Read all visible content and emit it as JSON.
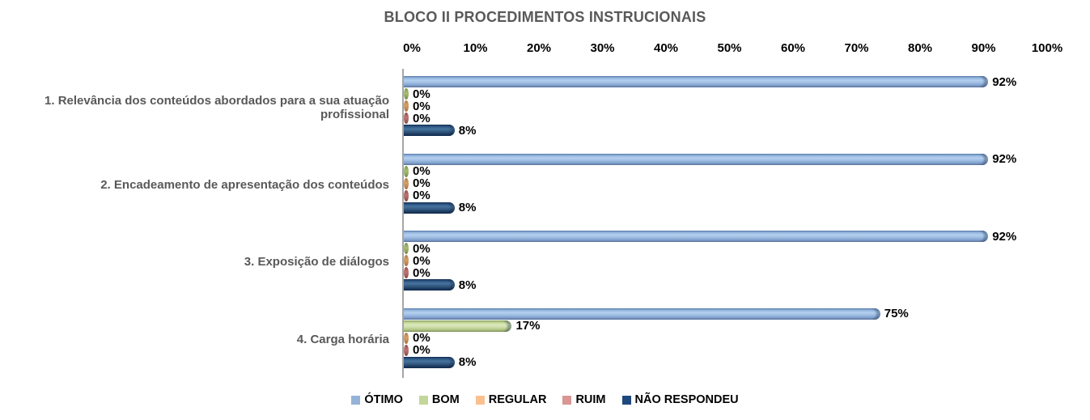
{
  "title": "BLOCO II PROCEDIMENTOS INSTRUCIONAIS",
  "chart_data": {
    "type": "bar",
    "orientation": "horizontal",
    "title": "BLOCO II PROCEDIMENTOS INSTRUCIONAIS",
    "categories": [
      "1. Relevância dos conteúdos abordados para a sua atuação profissional",
      "2. Encadeamento de apresentação dos conteúdos",
      "3. Exposição de diálogos",
      "4. Carga horária"
    ],
    "series": [
      {
        "name": "ÓTIMO",
        "color": "#95B3D7",
        "values": [
          92,
          92,
          92,
          75
        ]
      },
      {
        "name": "BOM",
        "color": "#C3D69B",
        "values": [
          0,
          0,
          0,
          17
        ]
      },
      {
        "name": "REGULAR",
        "color": "#FAC090",
        "values": [
          0,
          0,
          0,
          0
        ]
      },
      {
        "name": "RUIM",
        "color": "#D99694",
        "values": [
          0,
          0,
          0,
          0
        ]
      },
      {
        "name": "NÃO RESPONDEU",
        "color": "#1F497D",
        "values": [
          8,
          8,
          8,
          8
        ]
      }
    ],
    "x_ticks": [
      "0%",
      "10%",
      "20%",
      "30%",
      "40%",
      "50%",
      "60%",
      "70%",
      "80%",
      "90%",
      "100%"
    ],
    "xlim": [
      0,
      100
    ],
    "value_suffix": "%",
    "data_labels": true,
    "grid": false,
    "legend_position": "bottom",
    "axis_labels_position": "top"
  },
  "colors": {
    "title_text": "#595959",
    "category_text": "#595959",
    "tick_text": "#000000",
    "data_label_text": "#000000",
    "axis_line": "#A6A6A6",
    "background": "#FFFFFF"
  }
}
